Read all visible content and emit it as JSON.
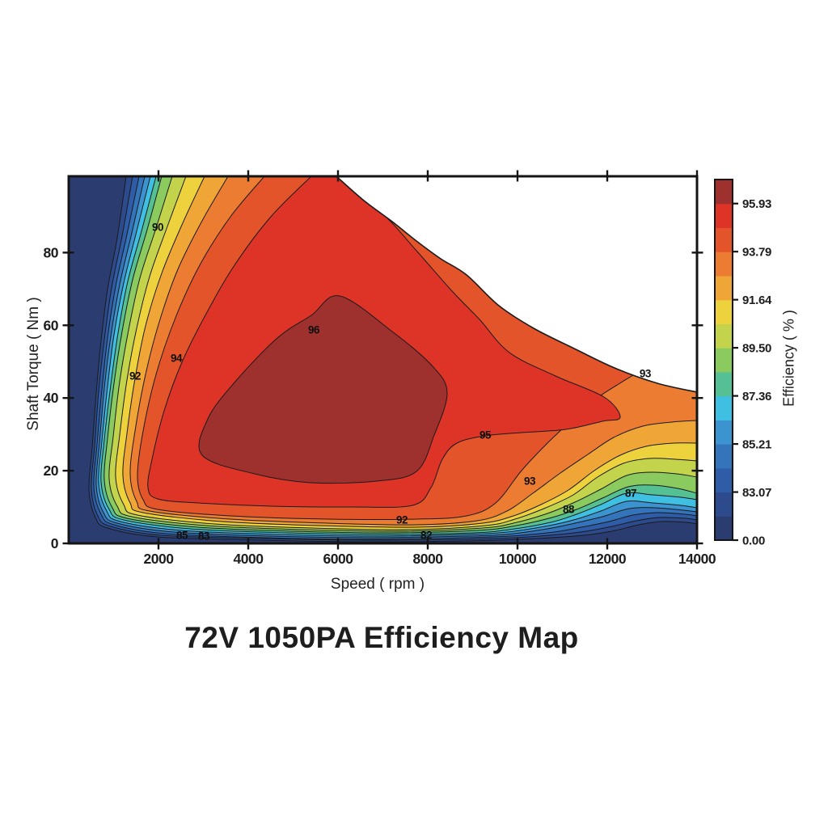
{
  "title": "72V 1050PA Efficiency Map",
  "chart_data": {
    "type": "heatmap",
    "variant": "filled-contour-motor-efficiency-map",
    "title": "72V 1050PA Efficiency Map",
    "xlabel": "Speed ( rpm )",
    "ylabel": "Shaft Torque ( Nm )",
    "colorbar_label": "Efficiency ( % )",
    "xlim": [
      0,
      14000
    ],
    "ylim": [
      0,
      101
    ],
    "x_ticks": [
      2000,
      4000,
      6000,
      8000,
      10000,
      12000,
      14000
    ],
    "y_ticks": [
      0,
      20,
      40,
      60,
      80
    ],
    "grid": false,
    "legend_position": "colorbar-right",
    "colorbar_tick_labels": [
      "95.93",
      "93.79",
      "91.64",
      "89.50",
      "87.36",
      "85.21",
      "83.07",
      "0.00"
    ],
    "levels": [
      0,
      82.0,
      83.07,
      84.14,
      85.21,
      86.29,
      87.36,
      88.43,
      89.5,
      90.57,
      91.64,
      92.71,
      93.79,
      94.86,
      95.93,
      97.0
    ],
    "band_colors_low_to_high": [
      "#2b3c71",
      "#2c4a8c",
      "#2f5ca6",
      "#3374bb",
      "#3b93cf",
      "#3fc0e2",
      "#54c094",
      "#8aca5f",
      "#c3d44c",
      "#edd23e",
      "#f0a637",
      "#ec7c32",
      "#e4542b",
      "#de3427",
      "#9e302e"
    ],
    "no_data_region": "white wedge at top-right (beyond max-torque envelope from ~5900 rpm at 101 Nm down to 14000 rpm at ~41 Nm)",
    "peak_efficiency_core": {
      "band": "> 95.93 %",
      "speed_rpm_range": [
        2800,
        8450
      ],
      "torque_nm_range": [
        17,
        68
      ]
    },
    "contour_labels": [
      {
        "value": "90",
        "speed_rpm": 1982,
        "torque_nm": 87.0
      },
      {
        "value": "92",
        "speed_rpm": 1477,
        "torque_nm": 46.0
      },
      {
        "value": "94",
        "speed_rpm": 2396,
        "torque_nm": 50.9
      },
      {
        "value": "96",
        "speed_rpm": 5459,
        "torque_nm": 58.7
      },
      {
        "value": "95",
        "speed_rpm": 9279,
        "torque_nm": 29.8
      },
      {
        "value": "93",
        "speed_rpm": 12846,
        "torque_nm": 46.7
      },
      {
        "value": "93",
        "speed_rpm": 10270,
        "torque_nm": 17.1
      },
      {
        "value": "92",
        "speed_rpm": 7423,
        "torque_nm": 6.5
      },
      {
        "value": "88",
        "speed_rpm": 11135,
        "torque_nm": 9.3
      },
      {
        "value": "87",
        "speed_rpm": 12523,
        "torque_nm": 13.8
      },
      {
        "value": "82",
        "speed_rpm": 7964,
        "torque_nm": 2.2
      },
      {
        "value": "85",
        "speed_rpm": 2523,
        "torque_nm": 2.2
      },
      {
        "value": "83",
        "speed_rpm": 3009,
        "torque_nm": 2.0
      }
    ]
  }
}
